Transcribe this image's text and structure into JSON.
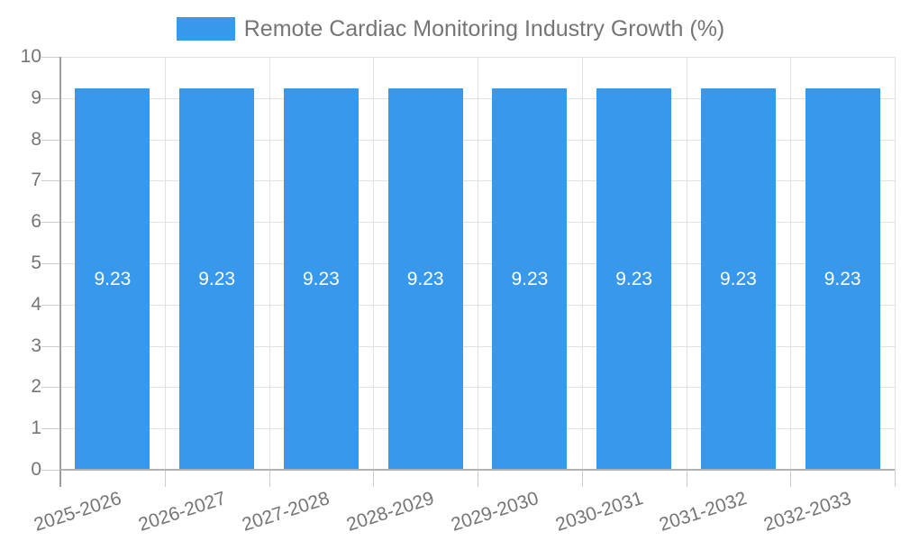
{
  "legend": {
    "label": "Remote Cardiac Monitoring Industry Growth (%)"
  },
  "chart_data": {
    "type": "bar",
    "title": "Remote Cardiac Monitoring Industry Growth (%)",
    "categories": [
      "2025-2026",
      "2026-2027",
      "2027-2028",
      "2028-2029",
      "2029-2030",
      "2030-2031",
      "2031-2032",
      "2032-2033"
    ],
    "values": [
      9.23,
      9.23,
      9.23,
      9.23,
      9.23,
      9.23,
      9.23,
      9.23
    ],
    "value_labels": [
      "9.23",
      "9.23",
      "9.23",
      "9.23",
      "9.23",
      "9.23",
      "9.23",
      "9.23"
    ],
    "xlabel": "",
    "ylabel": "",
    "ylim": [
      0,
      10
    ],
    "y_ticks": [
      "0",
      "1",
      "2",
      "3",
      "4",
      "5",
      "6",
      "7",
      "8",
      "9",
      "10"
    ],
    "grid": true,
    "legend_position": "top-center",
    "x_label_rotation_deg": -18,
    "colors": {
      "bar": "#3899EC",
      "axis_text": "#757575",
      "bar_label": "#FFFFFF",
      "gridline": "#E2E2E2",
      "tick_line": "#CCCCCC",
      "baseline": "#B3B3B3",
      "y_axis_line": "#9E9E9E"
    }
  }
}
